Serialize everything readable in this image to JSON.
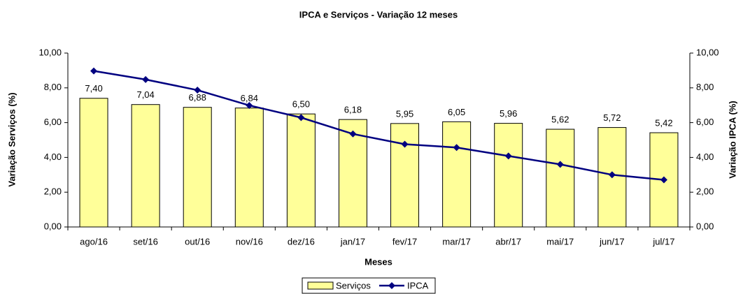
{
  "chart_data": {
    "type": "combo",
    "title": "IPCA e Serviços - Variação 12 meses",
    "x_label": "Meses",
    "y_label": "Variação Serviços (%)",
    "y2_label": "Variação IPCA (%)",
    "categories": [
      "ago/16",
      "set/16",
      "out/16",
      "nov/16",
      "dez/16",
      "jan/17",
      "fev/17",
      "mar/17",
      "abr/17",
      "mai/17",
      "jun/17",
      "jul/17"
    ],
    "series": [
      {
        "name": "Serviços",
        "type": "bar",
        "color": "#ffff99",
        "values": [
          7.4,
          7.04,
          6.88,
          6.84,
          6.5,
          6.18,
          5.95,
          6.05,
          5.96,
          5.62,
          5.72,
          5.42
        ],
        "value_labels": [
          "7,40",
          "7,04",
          "6,88",
          "6,84",
          "6,50",
          "6,18",
          "5,95",
          "6,05",
          "5,96",
          "5,62",
          "5,72",
          "5,42"
        ]
      },
      {
        "name": "IPCA",
        "type": "line",
        "color": "#000080",
        "axis": "y2",
        "values": [
          8.97,
          8.48,
          7.87,
          6.99,
          6.29,
          5.35,
          4.76,
          4.57,
          4.08,
          3.6,
          3.0,
          2.71
        ]
      }
    ],
    "ylim": [
      0,
      10
    ],
    "yticks": [
      {
        "value": 0,
        "label": "0,00"
      },
      {
        "value": 2,
        "label": "2,00"
      },
      {
        "value": 4,
        "label": "4,00"
      },
      {
        "value": 6,
        "label": "6,00"
      },
      {
        "value": 8,
        "label": "8,00"
      },
      {
        "value": 10,
        "label": "10,00"
      }
    ],
    "y2lim": [
      0,
      10
    ],
    "y2ticks": [
      {
        "value": 0,
        "label": "0,00"
      },
      {
        "value": 2,
        "label": "2,00"
      },
      {
        "value": 4,
        "label": "4,00"
      },
      {
        "value": 6,
        "label": "6,00"
      },
      {
        "value": 8,
        "label": "8,00"
      },
      {
        "value": 10,
        "label": "10,00"
      }
    ],
    "legend": "bottom"
  }
}
